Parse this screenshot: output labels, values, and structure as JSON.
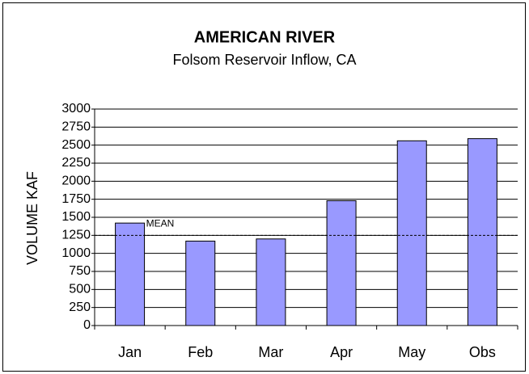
{
  "chart_data": {
    "type": "bar",
    "title": "AMERICAN RIVER",
    "subtitle": "Folsom Reservoir Inflow, CA",
    "y_label": "VOLUME KAF",
    "categories": [
      "Jan",
      "Feb",
      "Mar",
      "Apr",
      "May",
      "Obs"
    ],
    "values": [
      1420,
      1170,
      1200,
      1730,
      2560,
      2590
    ],
    "color": "#9999ff",
    "ylim": [
      0,
      3000
    ],
    "yticks": [
      0,
      250,
      500,
      750,
      1000,
      1250,
      1500,
      1750,
      2000,
      2250,
      2500,
      2750,
      3000
    ],
    "grid": true,
    "mean": {
      "value": 1250,
      "label": "MEAN"
    }
  }
}
